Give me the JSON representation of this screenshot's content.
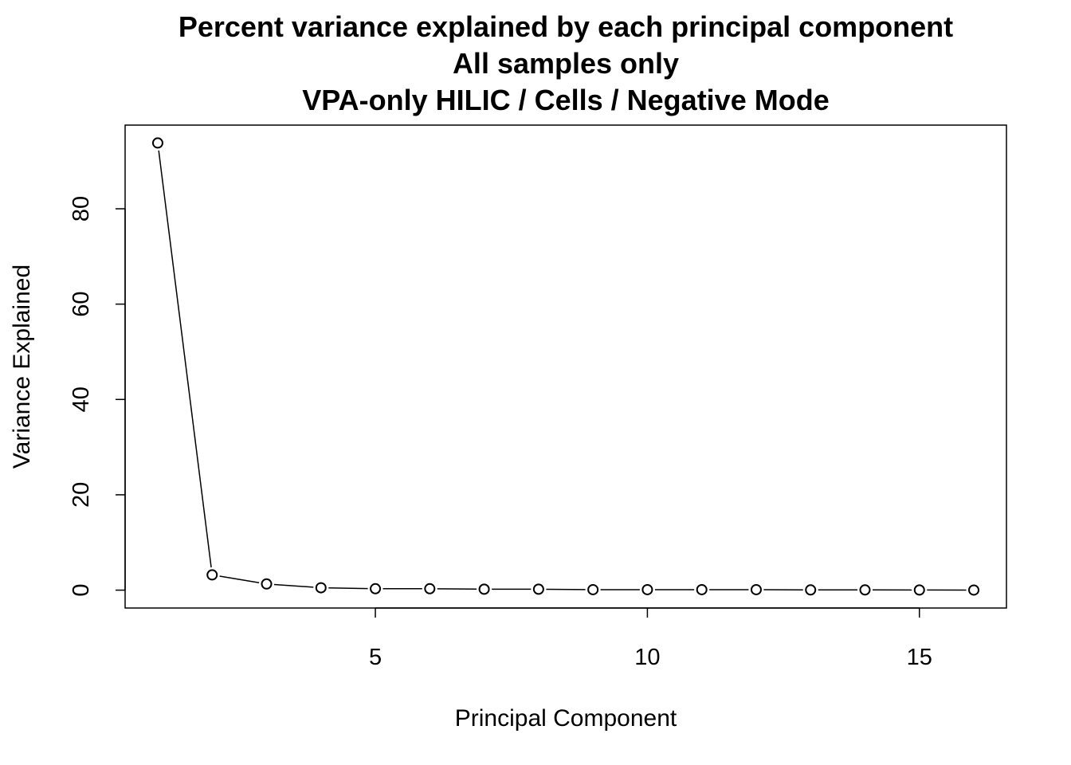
{
  "chart_data": {
    "type": "line",
    "title": "Percent variance explained by each principal component",
    "subtitle_lines": [
      "All samples only",
      "VPA-only HILIC / Cells / Negative Mode"
    ],
    "xlabel": "Principal Component",
    "ylabel": "Variance Explained",
    "x": [
      1,
      2,
      3,
      4,
      5,
      6,
      7,
      8,
      9,
      10,
      11,
      12,
      13,
      14,
      15,
      16
    ],
    "values": [
      93.8,
      3.2,
      1.3,
      0.5,
      0.3,
      0.3,
      0.2,
      0.2,
      0.1,
      0.1,
      0.1,
      0.1,
      0.05,
      0.05,
      0.03,
      0.02
    ],
    "xlim": [
      0.4,
      16.6
    ],
    "ylim": [
      -3.75,
      97.55
    ],
    "x_ticks": [
      5,
      10,
      15
    ],
    "y_ticks": [
      0,
      20,
      40,
      60,
      80
    ],
    "x_tick_labels": [
      "5",
      "10",
      "15"
    ],
    "y_tick_labels": [
      "0",
      "20",
      "40",
      "60",
      "80"
    ],
    "grid": false,
    "legend": "none",
    "marker": "open-circle",
    "colors": {
      "line": "#000000",
      "marker_stroke": "#000000",
      "marker_fill": "#ffffff",
      "background": "#ffffff"
    }
  }
}
